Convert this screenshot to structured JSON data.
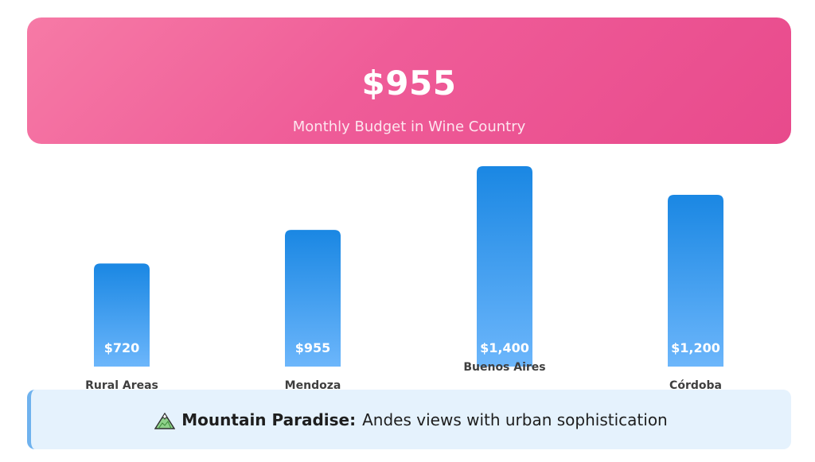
{
  "header": {
    "amount": "$955",
    "subtitle": "Monthly Budget in Wine Country"
  },
  "chart_data": {
    "type": "bar",
    "categories": [
      "Rural Areas",
      "Mendoza",
      "Buenos Aires",
      "Córdoba"
    ],
    "values": [
      720,
      955,
      1400,
      1200
    ],
    "value_labels": [
      "$720",
      "$955",
      "$1,400",
      "$1,200"
    ],
    "colors": {
      "bar_top": "#1a87e3",
      "bar_bottom": "#6cb6fb",
      "value_text": "#ffffff"
    },
    "title": "",
    "xlabel": "",
    "ylabel": "",
    "grid": false
  },
  "note": {
    "icon": "mountain-icon",
    "bold": "Mountain Paradise:",
    "text": "Andes views with urban sophistication"
  }
}
